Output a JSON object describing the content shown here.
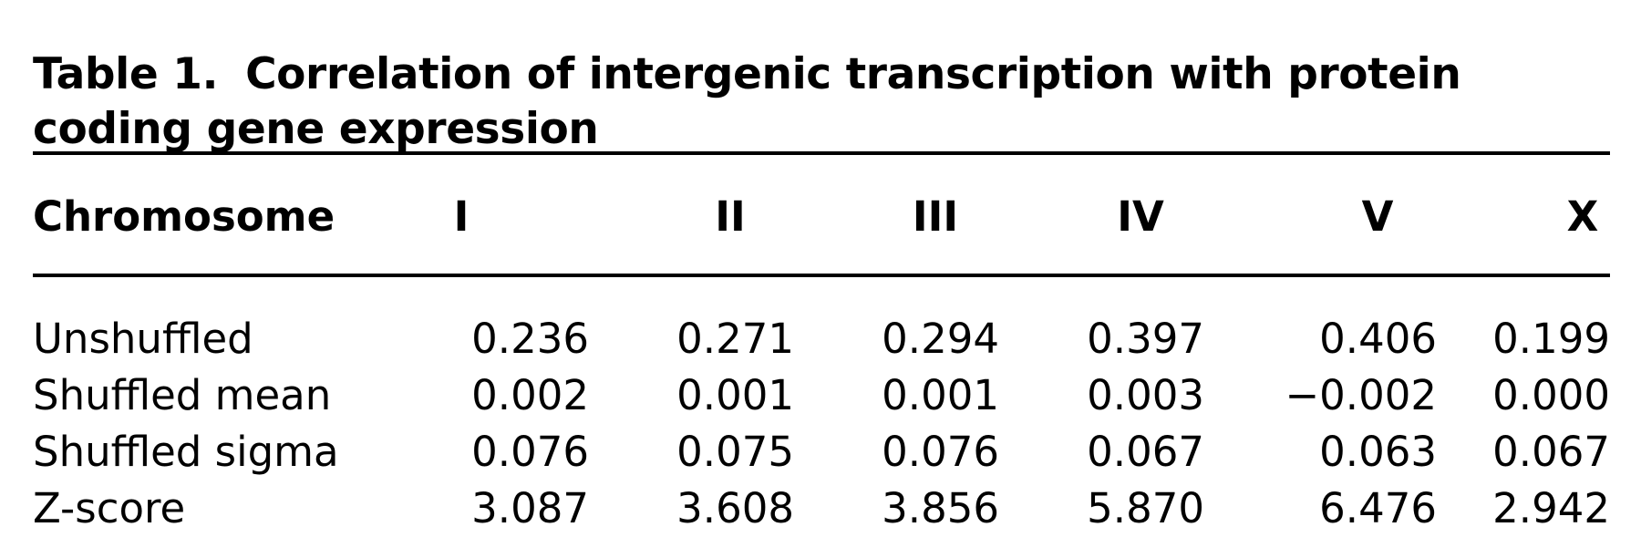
{
  "table": {
    "caption_label": "Table 1.",
    "caption_text": "Correlation of intergenic transcription with protein coding gene expression",
    "header": {
      "stub": "Chromosome",
      "columns": [
        "I",
        "II",
        "III",
        "IV",
        "V",
        "X"
      ]
    },
    "rows": [
      {
        "label": "Unshuffled",
        "values": [
          "0.236",
          "0.271",
          "0.294",
          "0.397",
          "0.406",
          "0.199"
        ]
      },
      {
        "label": "Shuffled mean",
        "values": [
          "0.002",
          "0.001",
          "0.001",
          "0.003",
          "−0.002",
          "0.000"
        ]
      },
      {
        "label": "Shuffled sigma",
        "values": [
          "0.076",
          "0.075",
          "0.076",
          "0.067",
          "0.063",
          "0.067"
        ]
      },
      {
        "label": "Z-score",
        "values": [
          "3.087",
          "3.608",
          "3.856",
          "5.870",
          "6.476",
          "2.942"
        ]
      }
    ]
  }
}
